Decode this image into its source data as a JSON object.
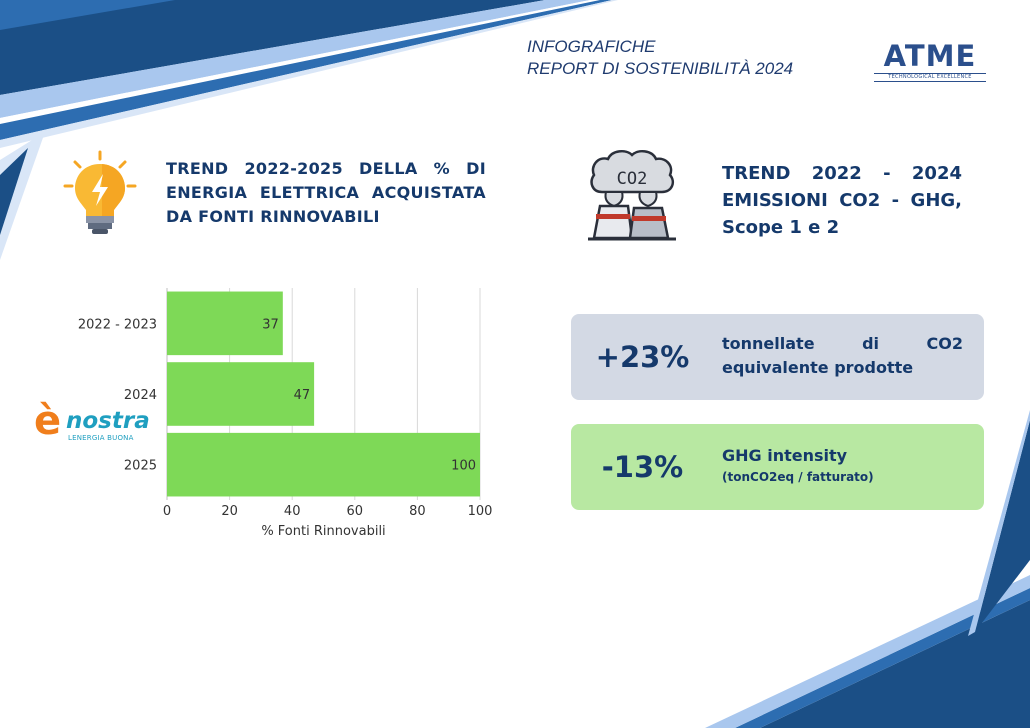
{
  "header": {
    "line1": "INFOGRAFICHE",
    "line2": "REPORT DI SOSTENIBILITÀ 2024"
  },
  "logo": {
    "main": "ATME",
    "sub": "TECHNOLOGICAL EXCELLENCE"
  },
  "section_left": {
    "icon": "lightbulb-icon",
    "title": "TREND 2022-2025 DELLA % DI ENERGIA ELETTRICA ACQUISTATA DA FONTI RINNOVABILI"
  },
  "section_right": {
    "icon": "co2-factory-icon",
    "icon_text": "CO2",
    "title": "TREND 2022 - 2024 EMISSIONI CO2 - GHG, Scope 1 e 2"
  },
  "kpis": [
    {
      "value": "+23%",
      "text": "tonnellate di CO2 equivalente prodotte",
      "subtext": ""
    },
    {
      "value": "-13%",
      "text": "GHG intensity",
      "subtext": "(tonCO2eq / fatturato)"
    }
  ],
  "supplier_logo": {
    "mark": "è",
    "word": "nostra",
    "tagline": "LENERGIA BUONA"
  },
  "colors": {
    "navy": "#15396b",
    "bar_green": "#7ed957",
    "card_grey": "#d3d9e4",
    "card_green": "#b8e8a2",
    "nostra_orange": "#f07e1c",
    "nostra_blue": "#1f9fc0"
  },
  "chart_data": {
    "type": "bar",
    "orientation": "horizontal",
    "categories": [
      "2022 - 2023",
      "2024",
      "2025"
    ],
    "values": [
      37,
      47,
      100
    ],
    "data_labels": [
      "37",
      "47",
      "100"
    ],
    "title": "",
    "xlabel": "% Fonti Rinnovabili",
    "ylabel": "",
    "xlim": [
      0,
      100
    ],
    "xticks": [
      0,
      20,
      40,
      60,
      80,
      100
    ],
    "xtick_labels": [
      "0",
      "20",
      "40",
      "60",
      "80",
      "100"
    ],
    "grid": true,
    "legend": "none"
  }
}
